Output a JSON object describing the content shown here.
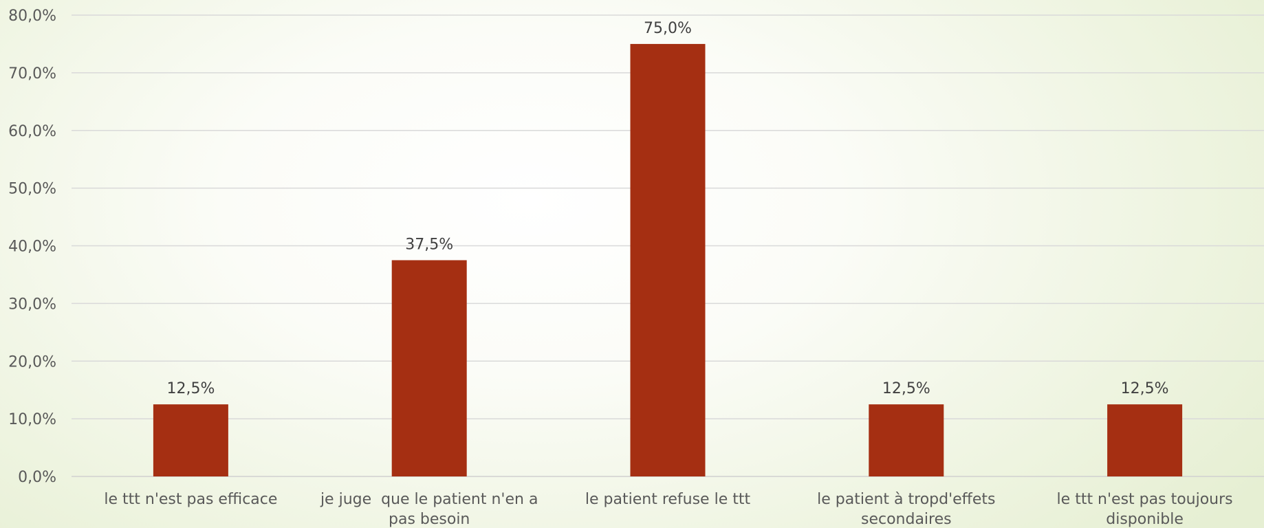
{
  "chart_data": {
    "type": "bar",
    "categories": [
      [
        "le ttt n'est pas efficace"
      ],
      [
        "je juge  que le patient n'en a",
        "pas besoin"
      ],
      [
        "le patient refuse le ttt"
      ],
      [
        "le patient à tropd'effets",
        "secondaires"
      ],
      [
        "le ttt n'est pas toujours",
        "disponible"
      ]
    ],
    "values": [
      12.5,
      37.5,
      75.0,
      12.5,
      12.5
    ],
    "data_labels": [
      "12,5%",
      "37,5%",
      "75,0%",
      "12,5%",
      "12,5%"
    ],
    "ylim": [
      0,
      80
    ],
    "yticks": [
      0,
      10,
      20,
      30,
      40,
      50,
      60,
      70,
      80
    ],
    "ytick_labels": [
      "0,0%",
      "10,0%",
      "20,0%",
      "30,0%",
      "40,0%",
      "50,0%",
      "60,0%",
      "70,0%",
      "80,0%"
    ],
    "title": "",
    "xlabel": "",
    "ylabel": "",
    "grid": true,
    "legend": "none",
    "bar_color": "#A52F12"
  }
}
